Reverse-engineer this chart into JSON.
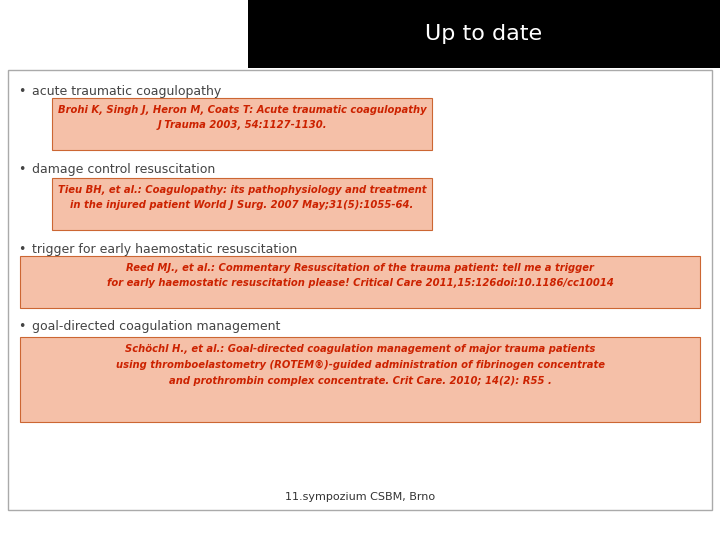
{
  "title": "Up to date",
  "title_bg": "#000000",
  "title_color": "#ffffff",
  "slide_bg": "#ffffff",
  "border_color": "#aaaaaa",
  "bullet_color": "#444444",
  "box_bg": "#f5c0a8",
  "box_border": "#cc6633",
  "box_text_color": "#cc2200",
  "link_color": "#008888",
  "bullets": [
    "acute traumatic coagulopathy",
    "damage control resuscitation",
    "trigger for early haemostatic resuscitation",
    "goal-directed coagulation management"
  ],
  "ref1_l1": "Brohi K, Singh J, Heron M, Coats T: Acute traumatic coagulopathy",
  "ref1_l2": "J Trauma 2003, 54:1127-1130.",
  "ref2_l1": "Tieu BH, et al.: Coagulopathy: its pathophysiology and treatment",
  "ref2_l2_pre": "in the injured patient ",
  "ref2_l2_link": "World J Surg.",
  "ref2_l2_post": " 2007 May;31(5):1055-64.",
  "ref3_l1": "Reed MJ., et al.: Commentary Resuscitation of the trauma patient: tell me a trigger",
  "ref3_l2": "for early haemostatic resuscitation please! Critical Care 2011,15:126doi:10.1186/cc10014",
  "ref4_l1": "Schöchl H., et al.: Goal-directed coagulation management of major trauma patients",
  "ref4_l2": "using thromboelastometry (ROTEM®)-guided administration of fibrinogen concentrate",
  "ref4_l3": "and prothrombin complex concentrate. Crit Care. 2010; 14(2): R55 .",
  "footer": "11.sympozium CSBM, Brno"
}
